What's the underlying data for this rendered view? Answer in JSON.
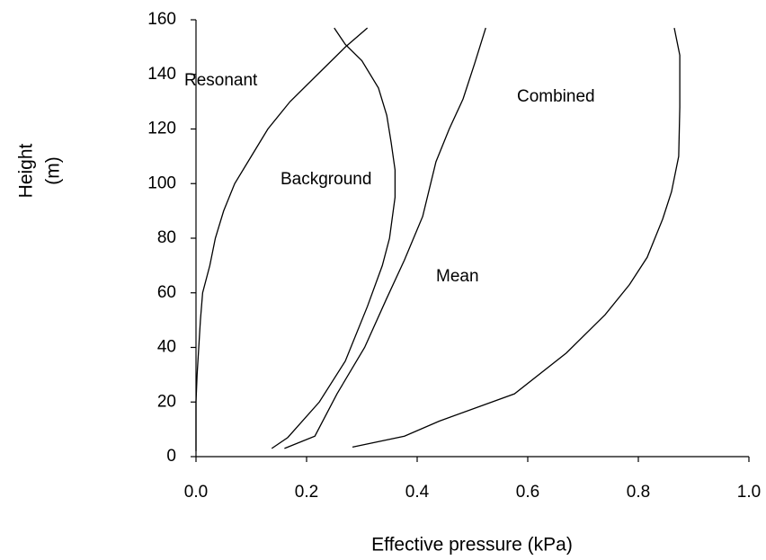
{
  "chart_data": {
    "type": "line",
    "xlabel": "Effective pressure  (kPa)",
    "ylabel": [
      "Height",
      "(m)"
    ],
    "xlim": [
      0,
      1
    ],
    "ylim": [
      0,
      160
    ],
    "xticks": [
      {
        "value": 0,
        "label": "0.0"
      },
      0.2,
      0.4,
      0.6,
      0.8,
      {
        "value": 1,
        "label": "1.0"
      }
    ],
    "yticks": [
      0,
      20,
      40,
      60,
      80,
      100,
      120,
      140,
      160
    ],
    "grid": false,
    "series": [
      {
        "name": "Resonant",
        "color": "#000000",
        "x": [
          0,
          0,
          0.002,
          0.005,
          0.008,
          0.012,
          0.025,
          0.035,
          0.05,
          0.07,
          0.1,
          0.13,
          0.17,
          0.22,
          0.27,
          0.31
        ],
        "values": [
          2,
          20,
          30,
          40,
          50,
          60,
          70,
          80,
          90,
          100,
          110,
          120,
          130,
          140,
          150,
          157
        ]
      },
      {
        "name": "Background",
        "color": "#000000",
        "x": [
          0.137,
          0.166,
          0.223,
          0.27,
          0.31,
          0.337,
          0.35,
          0.36,
          0.36,
          0.353,
          0.345,
          0.33,
          0.3,
          0.27,
          0.25
        ],
        "values": [
          3,
          7,
          20,
          35,
          55,
          70,
          80,
          95,
          105,
          115,
          125,
          135,
          145,
          151,
          157
        ]
      },
      {
        "name": "Mean",
        "color": "#000000",
        "x": [
          0.16,
          0.215,
          0.255,
          0.305,
          0.345,
          0.377,
          0.41,
          0.434,
          0.458,
          0.483,
          0.504,
          0.524
        ],
        "values": [
          3,
          7.5,
          23,
          40,
          58,
          72,
          88,
          108,
          120,
          131,
          144,
          157
        ]
      },
      {
        "name": "Combined",
        "color": "#000000",
        "x": [
          0.283,
          0.377,
          0.44,
          0.576,
          0.67,
          0.74,
          0.784,
          0.816,
          0.844,
          0.86,
          0.873,
          0.875,
          0.875,
          0.865
        ],
        "values": [
          3.5,
          7.5,
          13,
          23,
          38,
          52,
          63,
          73,
          87,
          97,
          110,
          128,
          147,
          157
        ]
      }
    ]
  }
}
